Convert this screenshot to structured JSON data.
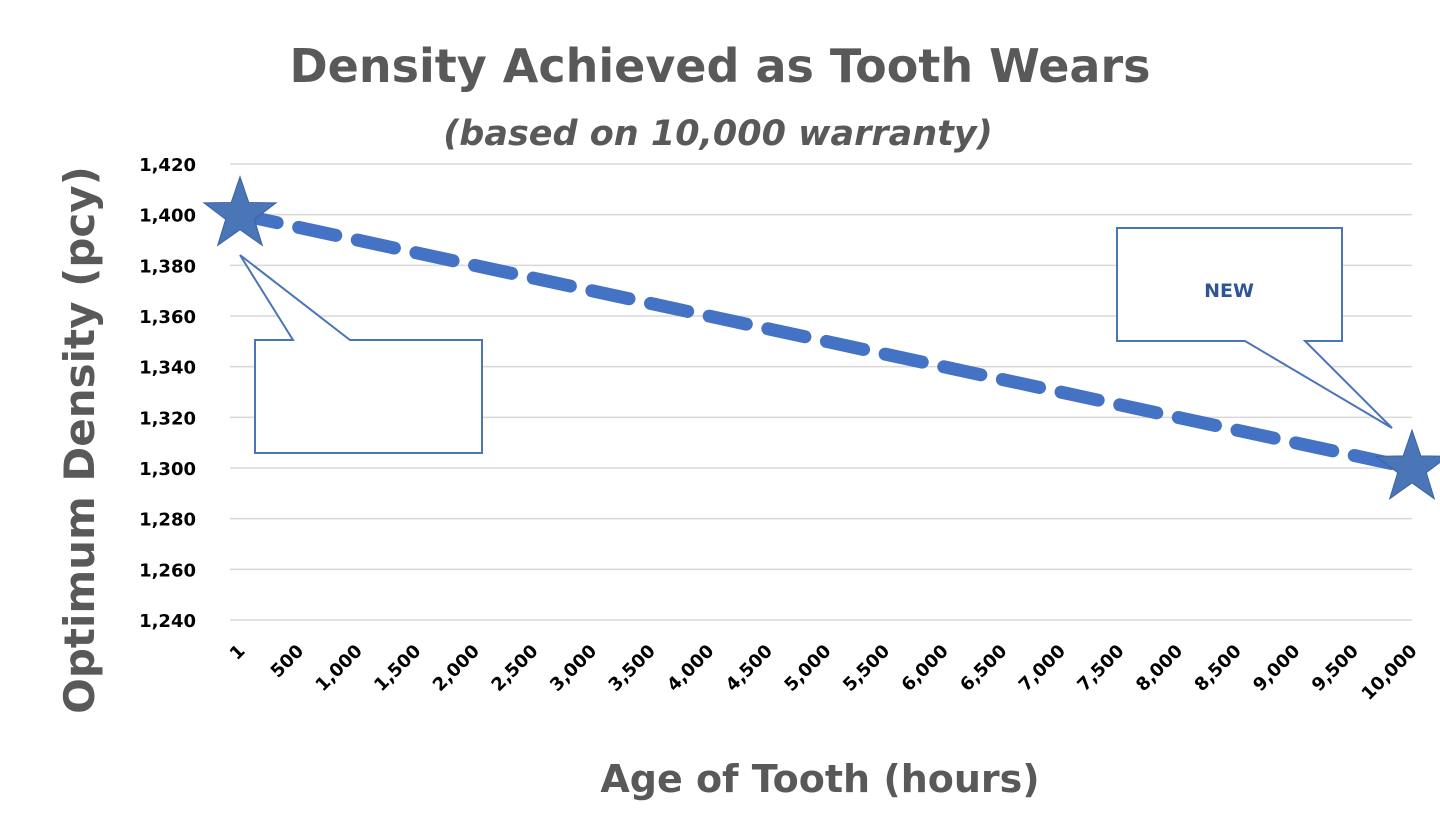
{
  "chart_data": {
    "type": "line",
    "title": "Density Achieved as Tooth Wears",
    "subtitle": "(based on 10,000 warranty)",
    "xlabel": "Age of Tooth (hours)",
    "ylabel": "Optimum Density (pcy)",
    "categories": [
      "1",
      "500",
      "1,000",
      "1,500",
      "2,000",
      "2,500",
      "3,000",
      "3,500",
      "4,000",
      "4,500",
      "5,000",
      "5,500",
      "6,000",
      "6,500",
      "7,000",
      "7,500",
      "8,000",
      "8,500",
      "9,000",
      "9,500",
      "10,000"
    ],
    "series": [
      {
        "values": [
          1400,
          1395,
          1390,
          1385,
          1380,
          1375,
          1370,
          1365,
          1360,
          1355,
          1350,
          1345,
          1340,
          1335,
          1330,
          1325,
          1320,
          1315,
          1310,
          1305,
          1300
        ],
        "color": "#4472c4",
        "style": "dashed",
        "endpoint_markers": "star"
      }
    ],
    "ylim": [
      1240,
      1420
    ],
    "y_ticks": [
      "1,420",
      "1,400",
      "1,380",
      "1,360",
      "1,340",
      "1,320",
      "1,300",
      "1,280",
      "1,260",
      "1,240"
    ],
    "y_tick_values": [
      1420,
      1400,
      1380,
      1360,
      1340,
      1320,
      1300,
      1280,
      1260,
      1240
    ],
    "grid": true,
    "legend": "none",
    "annotations": [
      {
        "text": "",
        "points_to": "1"
      },
      {
        "text": "NEW",
        "points_to": "10,000"
      }
    ]
  },
  "colors": {
    "series": "#4472c4",
    "star": "#4a76b8",
    "callout_border": "#4a76b8",
    "callout_text": "#2f5597",
    "title": "#595959",
    "grid": "#d9d9d9"
  }
}
